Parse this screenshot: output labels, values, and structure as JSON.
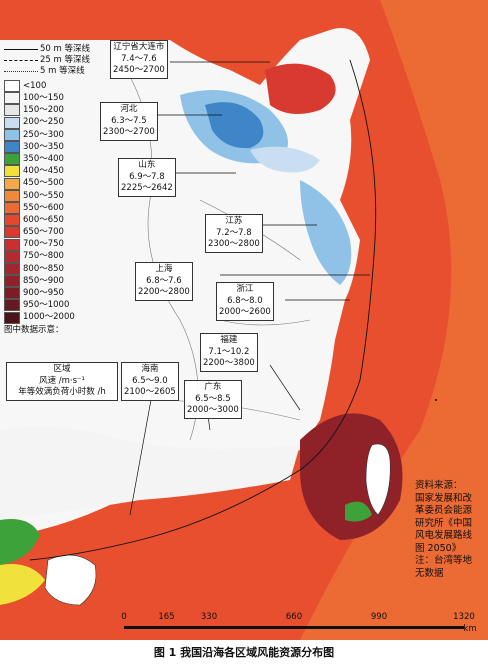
{
  "depth_lines": [
    {
      "label": "50 m 等深线",
      "style": "solid"
    },
    {
      "label": "25 m 等深线",
      "style": "dashed"
    },
    {
      "label": "5 m 等深线",
      "style": "dotted"
    }
  ],
  "legend": [
    {
      "label": "<100",
      "color": "#ffffff"
    },
    {
      "label": "100～150",
      "color": "#f4f4f4"
    },
    {
      "label": "150～200",
      "color": "#e6e6e6"
    },
    {
      "label": "200～250",
      "color": "#c9dff1"
    },
    {
      "label": "250～300",
      "color": "#8fc2e6"
    },
    {
      "label": "300～350",
      "color": "#3f86c8"
    },
    {
      "label": "350～400",
      "color": "#3da23a"
    },
    {
      "label": "400～450",
      "color": "#f0e23a"
    },
    {
      "label": "450～500",
      "color": "#f3a94a"
    },
    {
      "label": "500～550",
      "color": "#f08a3a"
    },
    {
      "label": "550～600",
      "color": "#ec6a34"
    },
    {
      "label": "600～650",
      "color": "#e4472e"
    },
    {
      "label": "650～700",
      "color": "#d83a2f"
    },
    {
      "label": "700～750",
      "color": "#c9302f"
    },
    {
      "label": "750～800",
      "color": "#b52a2f"
    },
    {
      "label": "800～850",
      "color": "#a2262d"
    },
    {
      "label": "850～900",
      "color": "#8f2229"
    },
    {
      "label": "900～950",
      "color": "#7a1d24"
    },
    {
      "label": "950～1000",
      "color": "#641a1f"
    },
    {
      "label": "1000～2000",
      "color": "#4a1418"
    }
  ],
  "legend_note": "图中数据示意：",
  "sample": {
    "line1": "区域",
    "line2": "风速 /m·s⁻¹",
    "line3": "年等效满负荷小时数 /h"
  },
  "regions": [
    {
      "name": "辽宁省大连市",
      "speed": "7.4～7.6",
      "hours": "2450～2700"
    },
    {
      "name": "河北",
      "speed": "6.3～7.5",
      "hours": "2300～2700"
    },
    {
      "name": "山东",
      "speed": "6.9～7.8",
      "hours": "2225～2642"
    },
    {
      "name": "江苏",
      "speed": "7.2～7.8",
      "hours": "2300～2800"
    },
    {
      "name": "上海",
      "speed": "6.8～7.6",
      "hours": "2200～2800"
    },
    {
      "name": "浙江",
      "speed": "6.8～8.0",
      "hours": "2000～2600"
    },
    {
      "name": "福建",
      "speed": "7.1～10.2",
      "hours": "2200～3800"
    },
    {
      "name": "广东",
      "speed": "6.5～8.5",
      "hours": "2000～3000"
    },
    {
      "name": "海南",
      "speed": "6.5～9.0",
      "hours": "2100～2605"
    }
  ],
  "source": [
    "资料来源：",
    "国家发展和改",
    "革委员会能源",
    "研究所《中国",
    "风电发展路线",
    "图 2050》",
    "注：台湾等地",
    "无数据"
  ],
  "scale": {
    "ticks": [
      "0",
      "165",
      "330",
      "660",
      "990",
      "1320"
    ],
    "unit": "km"
  },
  "caption": "图 1  我国沿海各区域风能资源分布图",
  "colors": {
    "sea_red": "#e4472e",
    "land_white": "#ffffff",
    "river_blue": "#3f86c8"
  }
}
